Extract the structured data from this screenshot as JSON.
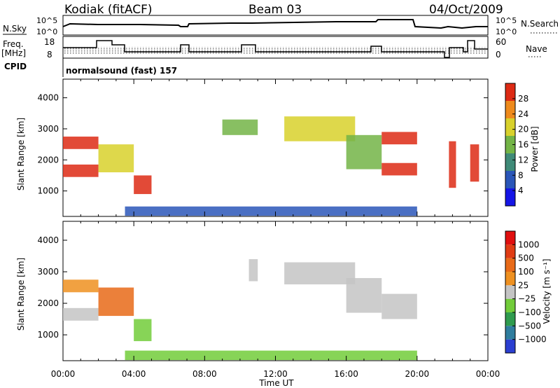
{
  "header": {
    "station": "Kodiak (fitACF)",
    "beam": "Beam 03",
    "date": "04/Oct/2009"
  },
  "small_panels": {
    "nsky_label": "N.Sky",
    "nsearch_label": "N.Search",
    "noise_ticks": [
      "10^5",
      "10^0"
    ],
    "freq_label_line1": "Freq.",
    "freq_label_line2": "[MHz]",
    "freq_ticks": [
      "18",
      "8"
    ],
    "nave_label": "Nave",
    "nave_ticks": [
      "60",
      "0"
    ],
    "cpid_label": "CPID",
    "cpid_text": "normalsound (fast) 157"
  },
  "chart_data": [
    {
      "type": "heatmap",
      "title": "",
      "xlabel": "Time UT",
      "ylabel": "Slant Range [km]",
      "xlim": [
        "00:00",
        "24:00"
      ],
      "ylim": [
        180,
        4600
      ],
      "x_ticks": [
        "00:00",
        "04:00",
        "08:00",
        "12:00",
        "16:00",
        "20:00",
        "00:00"
      ],
      "y_ticks": [
        1000,
        2000,
        3000,
        4000
      ],
      "colorbar": {
        "label": "Power [dB]",
        "ticks": [
          "4",
          "8",
          "12",
          "16",
          "20",
          "24",
          "28"
        ],
        "colors": [
          "#1515e6",
          "#2a56b8",
          "#3f8a78",
          "#73b446",
          "#d8d12c",
          "#ee8a1c",
          "#dd2a14"
        ]
      },
      "regions": [
        {
          "t": [
            0.0,
            2.0
          ],
          "r": [
            2350,
            2750
          ],
          "level": 6
        },
        {
          "t": [
            0.0,
            2.0
          ],
          "r": [
            1450,
            1850
          ],
          "level": 6
        },
        {
          "t": [
            2.0,
            4.0
          ],
          "r": [
            1600,
            2500
          ],
          "level": 4
        },
        {
          "t": [
            4.0,
            5.0
          ],
          "r": [
            900,
            1500
          ],
          "level": 6
        },
        {
          "t": [
            9.0,
            11.0
          ],
          "r": [
            2800,
            3300
          ],
          "level": 3
        },
        {
          "t": [
            12.5,
            16.5
          ],
          "r": [
            2600,
            3400
          ],
          "level": 4
        },
        {
          "t": [
            16.0,
            18.0
          ],
          "r": [
            1700,
            2800
          ],
          "level": 3
        },
        {
          "t": [
            18.0,
            20.0
          ],
          "r": [
            2500,
            2900
          ],
          "level": 6
        },
        {
          "t": [
            18.0,
            20.0
          ],
          "r": [
            1500,
            1900
          ],
          "level": 6
        },
        {
          "t": [
            21.8,
            22.2
          ],
          "r": [
            1100,
            2600
          ],
          "level": 6
        },
        {
          "t": [
            23.0,
            23.5
          ],
          "r": [
            1300,
            2500
          ],
          "level": 6
        },
        {
          "t": [
            3.5,
            20.0
          ],
          "r": [
            200,
            500
          ],
          "level": 1
        }
      ]
    },
    {
      "type": "heatmap",
      "title": "",
      "xlabel": "Time UT",
      "ylabel": "Slant Range [km]",
      "xlim": [
        "00:00",
        "24:00"
      ],
      "ylim": [
        180,
        4600
      ],
      "x_ticks": [
        "00:00",
        "04:00",
        "08:00",
        "12:00",
        "16:00",
        "20:00",
        "00:00"
      ],
      "y_ticks": [
        1000,
        2000,
        3000,
        4000
      ],
      "colorbar": {
        "label": "Velocity [m s⁻¹]",
        "ticks": [
          "1000",
          "500",
          "100",
          "25",
          "−25",
          "−100",
          "−500",
          "−1000"
        ],
        "colors": [
          "#2b3fd1",
          "#2f7d9e",
          "#2f9b4e",
          "#72cc3a",
          "#c4c4c4",
          "#ee9020",
          "#e86a18",
          "#e03c14",
          "#e00f0f"
        ]
      },
      "regions": [
        {
          "t": [
            0.0,
            2.0
          ],
          "r": [
            2350,
            2750
          ],
          "level": 5
        },
        {
          "t": [
            0.0,
            2.0
          ],
          "r": [
            1450,
            1850
          ],
          "level": 4
        },
        {
          "t": [
            2.0,
            4.0
          ],
          "r": [
            1600,
            2500
          ],
          "level": 6
        },
        {
          "t": [
            4.0,
            5.0
          ],
          "r": [
            800,
            1500
          ],
          "level": 3
        },
        {
          "t": [
            10.5,
            11.0
          ],
          "r": [
            2700,
            3400
          ],
          "level": 4
        },
        {
          "t": [
            12.5,
            16.5
          ],
          "r": [
            2600,
            3300
          ],
          "level": 4
        },
        {
          "t": [
            16.0,
            18.0
          ],
          "r": [
            1700,
            2800
          ],
          "level": 4
        },
        {
          "t": [
            18.0,
            20.0
          ],
          "r": [
            1500,
            2300
          ],
          "level": 4
        },
        {
          "t": [
            3.5,
            20.0
          ],
          "r": [
            200,
            500
          ],
          "level": 3
        }
      ]
    }
  ]
}
